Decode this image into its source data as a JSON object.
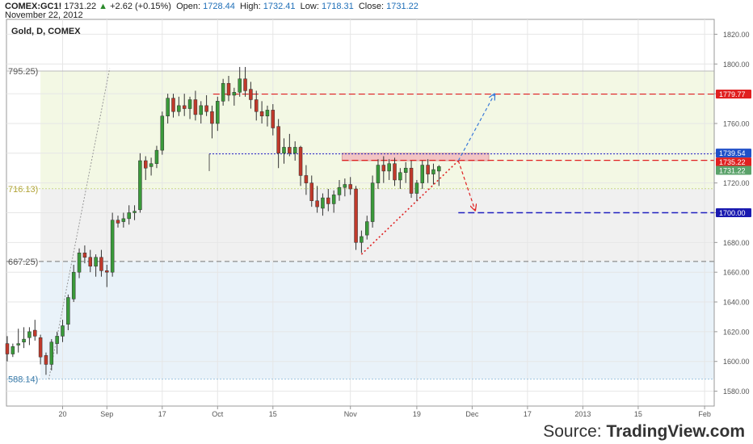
{
  "header": {
    "symbol": "COMEX:GC1!",
    "last": "1731.22",
    "change_arrow": "▲",
    "change": "+2.62 (+0.15%)",
    "open_label": "Open:",
    "open": "1728.44",
    "high_label": "High:",
    "high": "1732.41",
    "low_label": "Low:",
    "low": "1718.31",
    "close_label": "Close:",
    "close": "1731.22",
    "date": "November 22, 2012"
  },
  "pane_title": "Gold, D, COMEX",
  "source": {
    "prefix": "Source: ",
    "brand": "TradingView.com"
  },
  "colors": {
    "up": "#3a9a3a",
    "down": "#c0392b",
    "wick": "#333333",
    "zone_top": "#f3f8e4",
    "zone_mid": "#f0f0f0",
    "zone_bottom": "#e9f2f9",
    "red_line": "#e02020",
    "blue_line": "#2020c0",
    "resistance_box": "#f2c4c4"
  },
  "chart_data": {
    "type": "candlestick",
    "ylim": [
      1570,
      1830
    ],
    "y_ticks": [
      1580,
      1600,
      1620,
      1640,
      1660,
      1680,
      1700,
      1720,
      1740,
      1760,
      1780,
      1800,
      1820
    ],
    "x_ticks": [
      {
        "label": "20",
        "i": 10
      },
      {
        "label": "Sep",
        "i": 18
      },
      {
        "label": "17",
        "i": 28
      },
      {
        "label": "Oct",
        "i": 38
      },
      {
        "label": "15",
        "i": 48
      },
      {
        "label": "Nov",
        "i": 62
      },
      {
        "label": "19",
        "i": 74
      },
      {
        "label": "Dec",
        "i": 84
      },
      {
        "label": "17",
        "i": 94
      },
      {
        "label": "2013",
        "i": 104
      },
      {
        "label": "15",
        "i": 114
      },
      {
        "label": "Feb",
        "i": 126
      }
    ],
    "fib_levels": [
      {
        "label": "795.25)",
        "value": 1795.25
      },
      {
        "label": "716.13)",
        "value": 1716.13
      },
      {
        "label": "667.25)",
        "value": 1667.25
      },
      {
        "label": "588.14)",
        "value": 1588.14
      }
    ],
    "price_labels": [
      {
        "label": "1779.77",
        "value": 1779.77
      },
      {
        "label": "1739.54",
        "value": 1739.54
      },
      {
        "label": "1735.22",
        "value": 1735.22
      },
      {
        "label": "1731.22",
        "value": 1731.22
      },
      {
        "label": "1700.00",
        "value": 1700.0
      }
    ],
    "ohlc": [
      [
        1612,
        1617,
        1600,
        1605
      ],
      [
        1605,
        1612,
        1603,
        1610
      ],
      [
        1611,
        1622,
        1606,
        1612
      ],
      [
        1613,
        1623,
        1609,
        1615
      ],
      [
        1616,
        1623,
        1611,
        1620
      ],
      [
        1621,
        1628,
        1614,
        1617
      ],
      [
        1616,
        1618,
        1598,
        1603
      ],
      [
        1604,
        1606,
        1591,
        1598
      ],
      [
        1598,
        1615,
        1594,
        1613
      ],
      [
        1612,
        1620,
        1605,
        1617
      ],
      [
        1617,
        1628,
        1613,
        1624
      ],
      [
        1625,
        1645,
        1621,
        1643
      ],
      [
        1642,
        1665,
        1640,
        1660
      ],
      [
        1660,
        1676,
        1656,
        1673
      ],
      [
        1673,
        1678,
        1666,
        1670
      ],
      [
        1670,
        1675,
        1660,
        1664
      ],
      [
        1664,
        1672,
        1657,
        1670
      ],
      [
        1670,
        1675,
        1657,
        1661
      ],
      [
        1661,
        1665,
        1650,
        1660
      ],
      [
        1660,
        1700,
        1657,
        1695
      ],
      [
        1695,
        1698,
        1690,
        1693
      ],
      [
        1694,
        1700,
        1690,
        1696
      ],
      [
        1696,
        1705,
        1692,
        1700
      ],
      [
        1700,
        1705,
        1695,
        1701
      ],
      [
        1702,
        1740,
        1700,
        1735
      ],
      [
        1735,
        1738,
        1722,
        1730
      ],
      [
        1731,
        1737,
        1725,
        1733
      ],
      [
        1733,
        1745,
        1730,
        1742
      ],
      [
        1742,
        1768,
        1739,
        1765
      ],
      [
        1765,
        1780,
        1760,
        1777
      ],
      [
        1777,
        1780,
        1764,
        1768
      ],
      [
        1768,
        1778,
        1765,
        1772
      ],
      [
        1772,
        1780,
        1765,
        1770
      ],
      [
        1770,
        1778,
        1763,
        1776
      ],
      [
        1776,
        1782,
        1762,
        1766
      ],
      [
        1766,
        1775,
        1760,
        1772
      ],
      [
        1772,
        1779,
        1765,
        1768
      ],
      [
        1768,
        1772,
        1750,
        1760
      ],
      [
        1760,
        1778,
        1755,
        1775
      ],
      [
        1775,
        1790,
        1772,
        1787
      ],
      [
        1787,
        1792,
        1775,
        1779
      ],
      [
        1779,
        1784,
        1772,
        1781
      ],
      [
        1781,
        1798,
        1778,
        1790
      ],
      [
        1790,
        1798,
        1778,
        1782
      ],
      [
        1783,
        1788,
        1770,
        1776
      ],
      [
        1776,
        1782,
        1762,
        1768
      ],
      [
        1768,
        1775,
        1760,
        1765
      ],
      [
        1765,
        1772,
        1758,
        1769
      ],
      [
        1769,
        1773,
        1752,
        1757
      ],
      [
        1758,
        1763,
        1730,
        1740
      ],
      [
        1740,
        1750,
        1733,
        1744
      ],
      [
        1744,
        1753,
        1738,
        1740
      ],
      [
        1740,
        1748,
        1735,
        1744
      ],
      [
        1744,
        1745,
        1718,
        1725
      ],
      [
        1725,
        1732,
        1712,
        1720
      ],
      [
        1720,
        1725,
        1704,
        1708
      ],
      [
        1708,
        1718,
        1700,
        1704
      ],
      [
        1703,
        1713,
        1698,
        1710
      ],
      [
        1710,
        1716,
        1701,
        1706
      ],
      [
        1706,
        1715,
        1700,
        1712
      ],
      [
        1712,
        1722,
        1708,
        1717
      ],
      [
        1717,
        1723,
        1711,
        1719
      ],
      [
        1719,
        1724,
        1712,
        1716
      ],
      [
        1716,
        1718,
        1675,
        1680
      ],
      [
        1680,
        1688,
        1673,
        1684
      ],
      [
        1685,
        1698,
        1682,
        1694
      ],
      [
        1694,
        1725,
        1690,
        1720
      ],
      [
        1720,
        1736,
        1716,
        1732
      ],
      [
        1732,
        1738,
        1720,
        1728
      ],
      [
        1728,
        1736,
        1722,
        1733
      ],
      [
        1733,
        1737,
        1718,
        1722
      ],
      [
        1722,
        1730,
        1716,
        1727
      ],
      [
        1727,
        1734,
        1720,
        1730
      ],
      [
        1730,
        1735,
        1710,
        1713
      ],
      [
        1713,
        1722,
        1708,
        1720
      ],
      [
        1720,
        1735,
        1716,
        1732
      ],
      [
        1732,
        1736,
        1720,
        1726
      ],
      [
        1726,
        1733,
        1719,
        1729
      ],
      [
        1728,
        1732,
        1718,
        1731
      ]
    ]
  }
}
